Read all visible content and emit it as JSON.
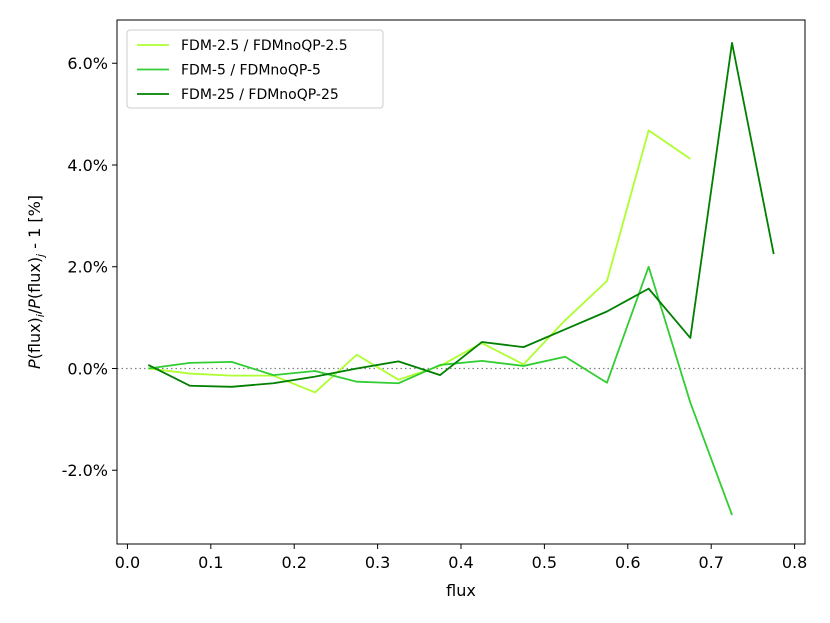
{
  "chart_data": {
    "type": "line",
    "xlabel": "flux",
    "ylabel": "P(flux)_i/P(flux)_j - 1 [%]",
    "xlim": [
      -0.0125,
      0.8125
    ],
    "ylim": [
      -3.45,
      6.85
    ],
    "xticks": [
      0.0,
      0.1,
      0.2,
      0.3,
      0.4,
      0.5,
      0.6,
      0.7,
      0.8
    ],
    "xtick_labels": [
      "0.0",
      "0.1",
      "0.2",
      "0.3",
      "0.4",
      "0.5",
      "0.6",
      "0.7",
      "0.8"
    ],
    "yticks": [
      -2,
      0,
      2,
      4,
      6
    ],
    "ytick_labels": [
      "-2.0%",
      "0.0%",
      "2.0%",
      "4.0%",
      "6.0%"
    ],
    "reference_line": {
      "y": 0,
      "style": "dotted",
      "color": "#808080"
    },
    "legend_position": "upper-left",
    "series": [
      {
        "name": "FDM-2.5 / FDMnoQP-2.5",
        "color": "#adff2f",
        "x": [
          0.025,
          0.075,
          0.125,
          0.175,
          0.225,
          0.275,
          0.325,
          0.375,
          0.425,
          0.475,
          0.525,
          0.575,
          0.625,
          0.675
        ],
        "y": [
          0.0,
          -0.1,
          -0.14,
          -0.14,
          -0.47,
          0.27,
          -0.22,
          0.05,
          0.5,
          0.08,
          0.95,
          1.72,
          4.68,
          4.12
        ]
      },
      {
        "name": "FDM-5 / FDMnoQP-5",
        "color": "#32cd32",
        "x": [
          0.025,
          0.075,
          0.125,
          0.175,
          0.225,
          0.275,
          0.325,
          0.375,
          0.425,
          0.475,
          0.525,
          0.575,
          0.625,
          0.675,
          0.725
        ],
        "y": [
          0.0,
          0.11,
          0.13,
          -0.13,
          -0.05,
          -0.26,
          -0.29,
          0.07,
          0.15,
          0.05,
          0.23,
          -0.28,
          2.0,
          -0.67,
          -2.88
        ]
      },
      {
        "name": "FDM-25 / FDMnoQP-25",
        "color": "#008000",
        "x": [
          0.025,
          0.075,
          0.125,
          0.175,
          0.225,
          0.275,
          0.325,
          0.375,
          0.425,
          0.475,
          0.525,
          0.575,
          0.625,
          0.675,
          0.725,
          0.775
        ],
        "y": [
          0.07,
          -0.34,
          -0.36,
          -0.29,
          -0.16,
          0.0,
          0.14,
          -0.13,
          0.52,
          0.42,
          0.77,
          1.12,
          1.57,
          0.6,
          6.4,
          2.25
        ]
      }
    ]
  }
}
